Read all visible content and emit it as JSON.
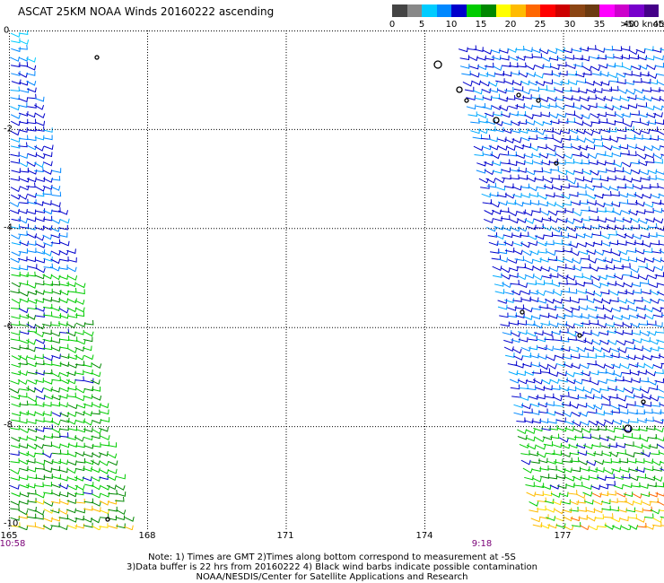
{
  "title": "ASCAT 25KM NOAA Winds 20160222 ascending",
  "legend": {
    "colors": [
      "#444444",
      "#888888",
      "#00ccff",
      "#0088ff",
      "#0000cc",
      "#00cc00",
      "#008800",
      "#ffff00",
      "#ffbb00",
      "#ff6600",
      "#ff0000",
      "#cc0000",
      "#8b4513",
      "#6b3a10",
      "#ff00ff",
      "#cc00cc",
      "#7700cc",
      "#440088"
    ],
    "ticks": [
      "0",
      "5",
      "10",
      "15",
      "20",
      "25",
      "30",
      "35",
      "40",
      "45"
    ],
    "max_label": ">50 knots"
  },
  "lat_labels": [
    "0",
    "-2",
    "-4",
    "-6",
    "-8",
    "-10"
  ],
  "lon_labels": [
    "165",
    "168",
    "171",
    "174",
    "177"
  ],
  "times": {
    "left": "10:58",
    "right": "9:18"
  },
  "notes": {
    "line1": "Note: 1) Times are GMT 2)Times along bottom correspond to measurement at -5S",
    "line2": "3)Data buffer is 22 hrs from 20160222 4) Black wind barbs indicate possible contamination",
    "line3": "NOAA/NESDIS/Center for Satellite Applications and Research"
  },
  "map": {
    "lon_range": [
      165,
      178.7
    ],
    "lat_range": [
      0,
      -10
    ],
    "grid_lons": [
      168,
      171,
      174,
      177
    ],
    "grid_lats": [
      -2,
      -4,
      -6,
      -8
    ]
  }
}
